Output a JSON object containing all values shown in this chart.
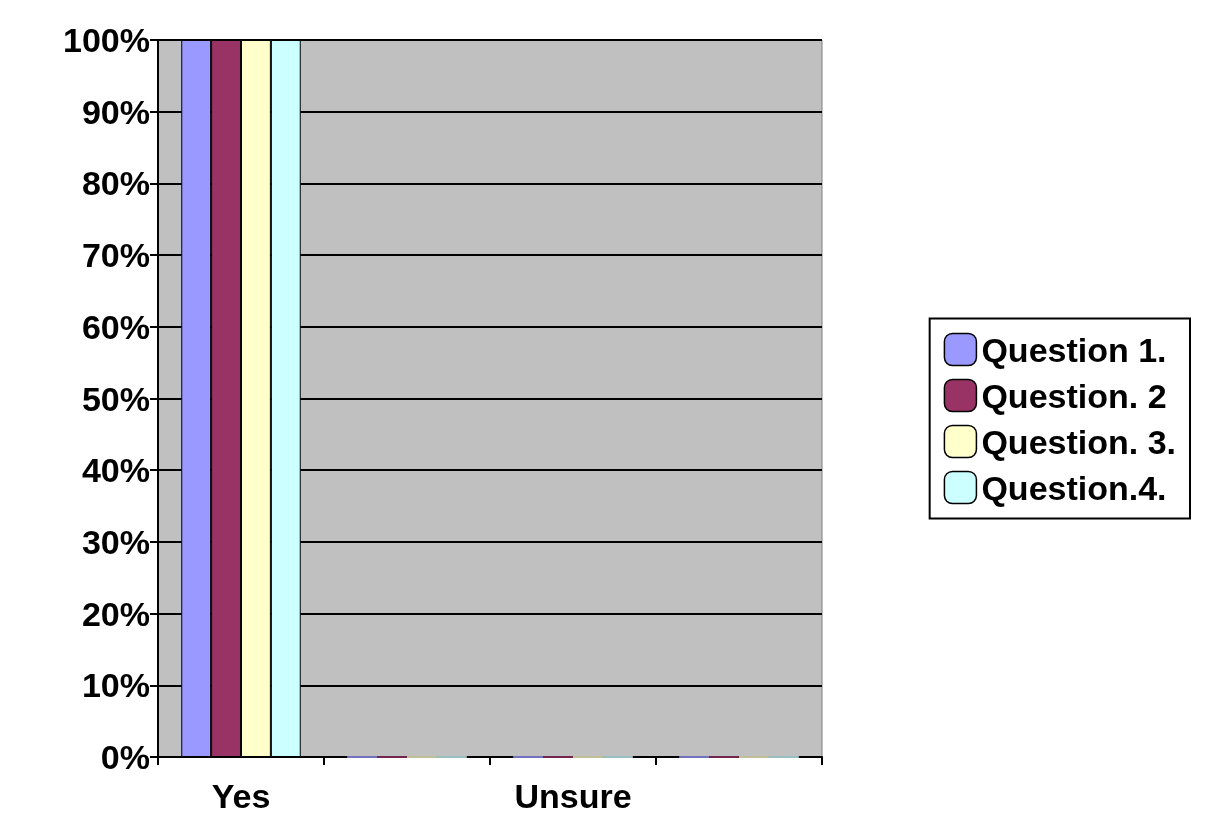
{
  "chart_data": {
    "type": "bar",
    "categories": [
      "Yes",
      null,
      "Unsure",
      null
    ],
    "series": [
      {
        "name": "Question 1.",
        "color": "#9999ff",
        "values": [
          100,
          0,
          0,
          0
        ]
      },
      {
        "name": "Question. 2",
        "color": "#993366",
        "values": [
          100,
          0,
          0,
          0
        ]
      },
      {
        "name": "Question. 3.",
        "color": "#ffffcc",
        "values": [
          100,
          0,
          0,
          0
        ]
      },
      {
        "name": "Question.4.",
        "color": "#ccffff",
        "values": [
          100,
          0,
          0,
          0
        ]
      }
    ],
    "ylim": [
      0,
      100
    ],
    "yticks": [
      {
        "value": 0,
        "label": "0%"
      },
      {
        "value": 10,
        "label": "10%"
      },
      {
        "value": 20,
        "label": "20%"
      },
      {
        "value": 30,
        "label": "30%"
      },
      {
        "value": 40,
        "label": "40%"
      },
      {
        "value": 50,
        "label": "50%"
      },
      {
        "value": 60,
        "label": "60%"
      },
      {
        "value": 70,
        "label": "70%"
      },
      {
        "value": 80,
        "label": "80%"
      },
      {
        "value": 90,
        "label": "90%"
      },
      {
        "value": 100,
        "label": "100%"
      }
    ],
    "grid": "y",
    "legend": "right"
  }
}
